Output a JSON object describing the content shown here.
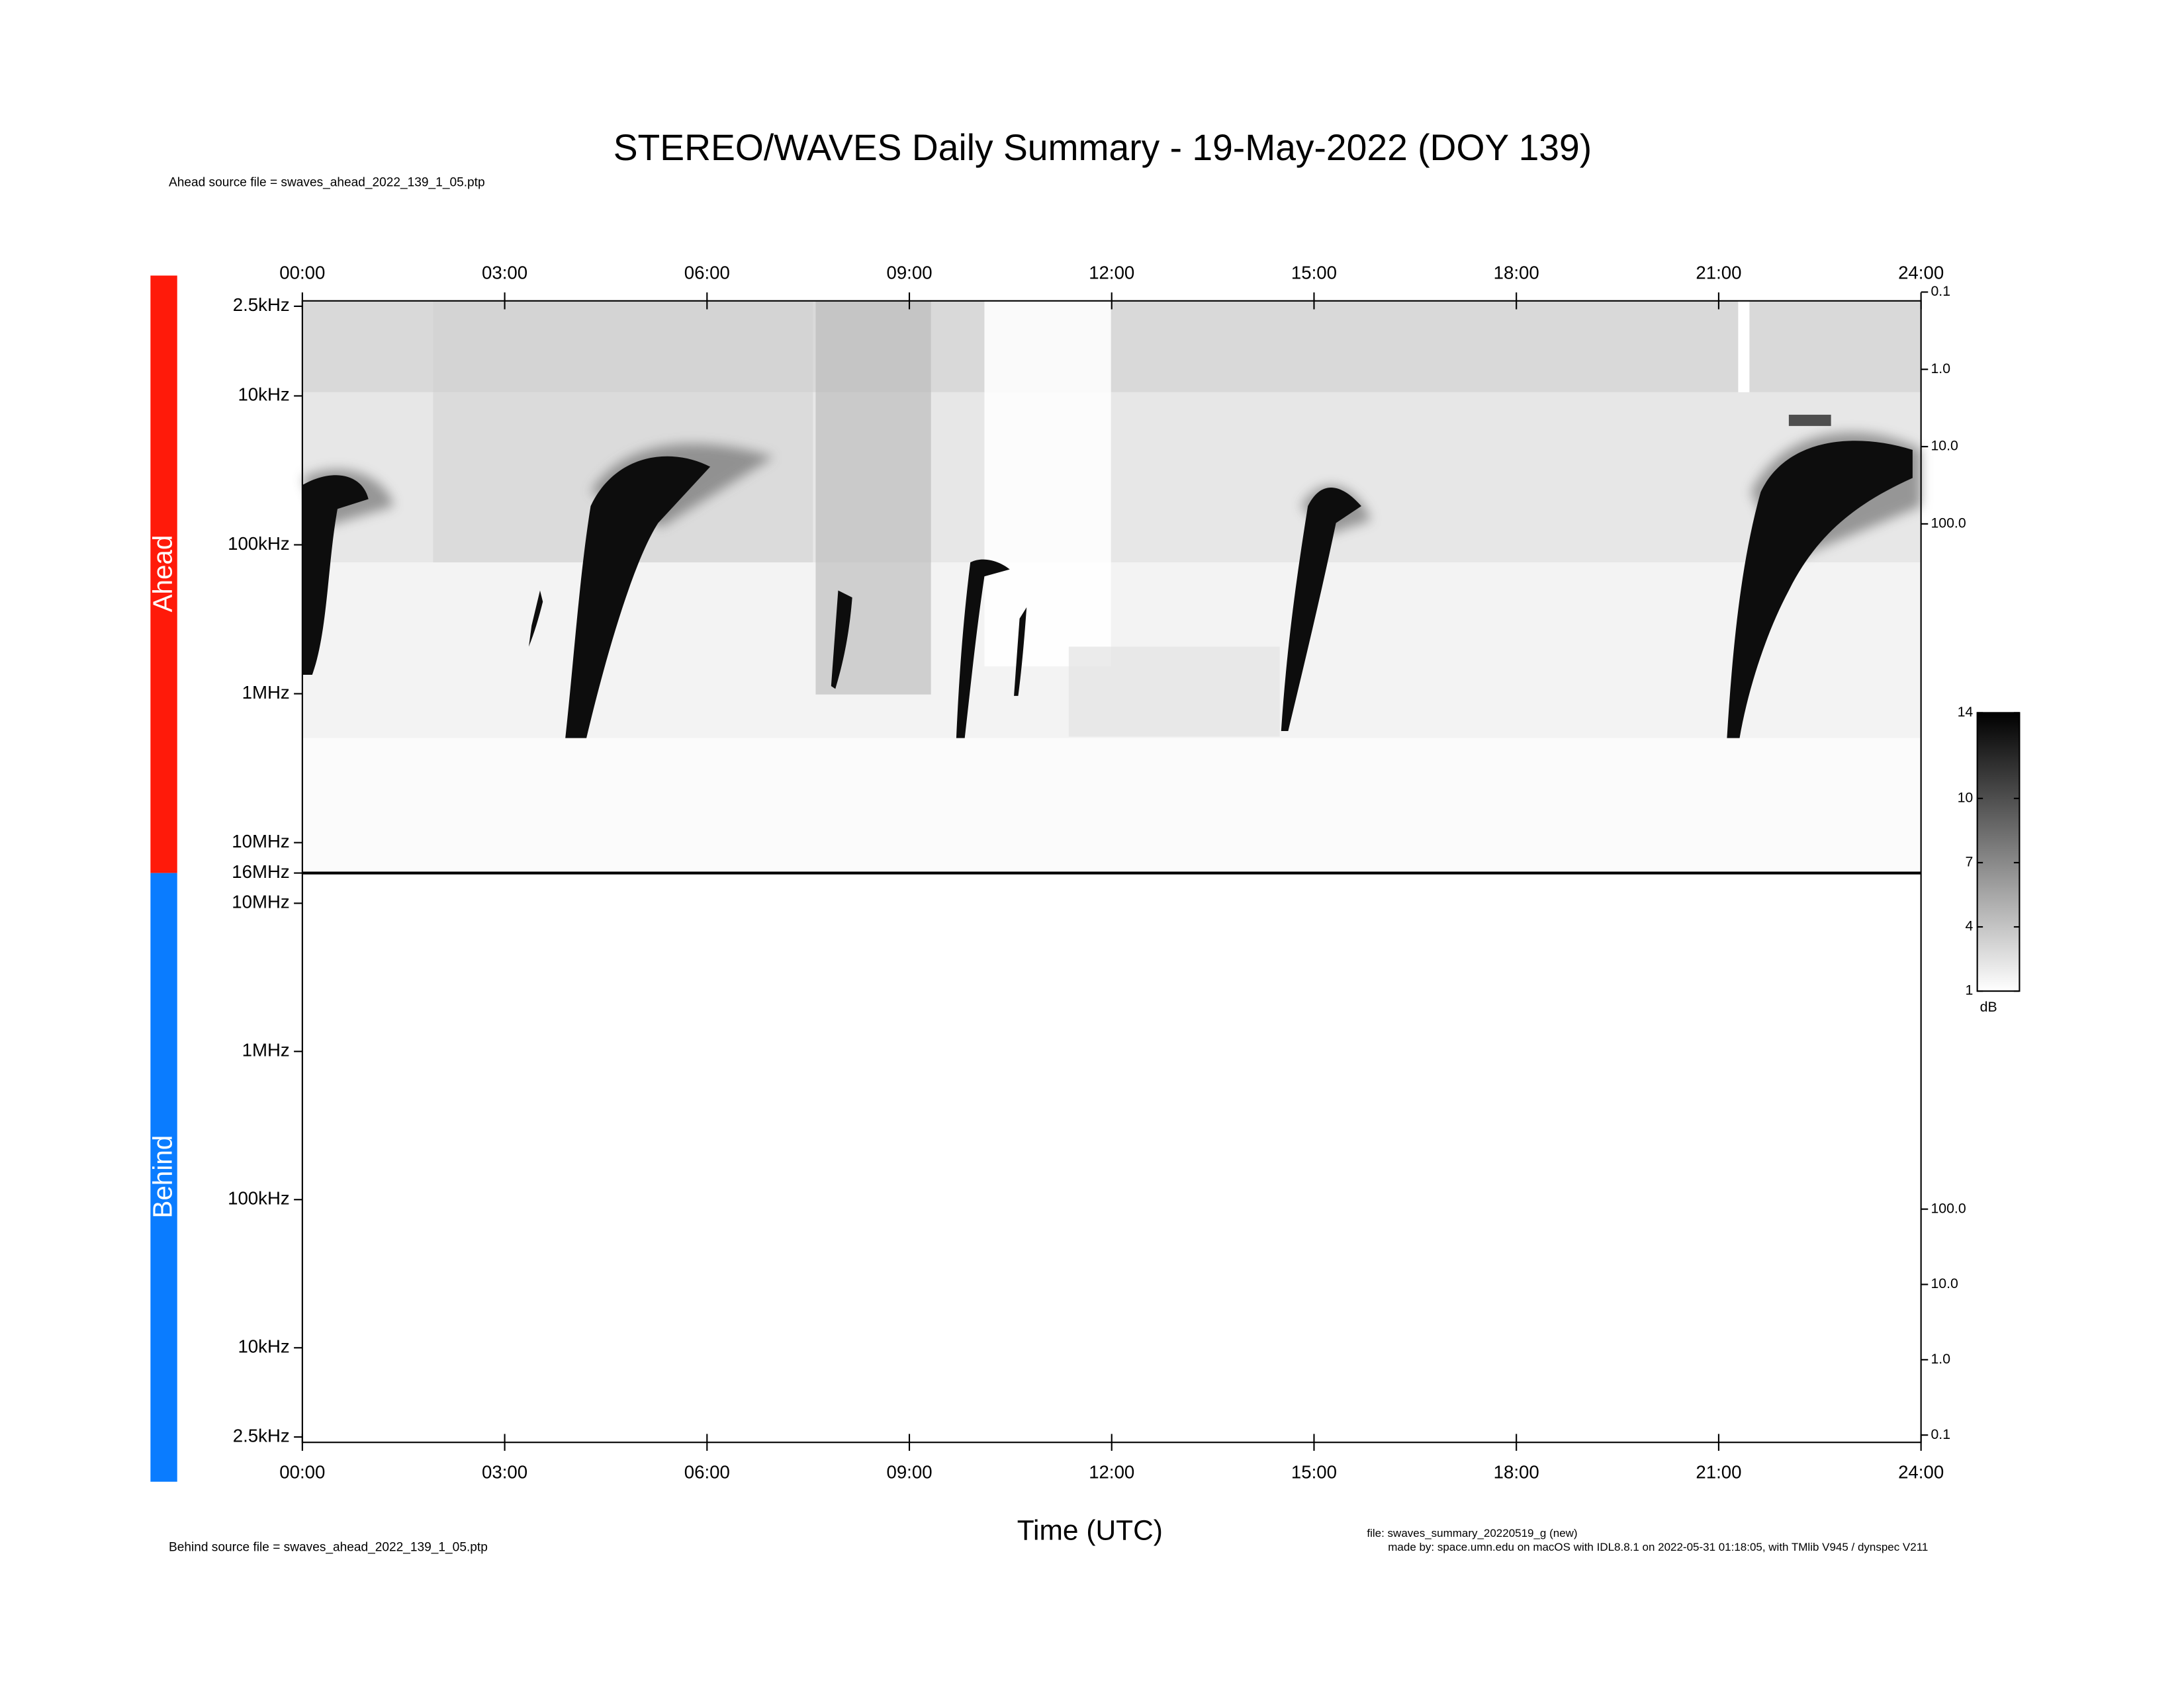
{
  "title": "STEREO/WAVES Daily Summary - 19-May-2022 (DOY 139)",
  "footer": [
    "file: swaves_summary_20220519_g (new)",
    "made by: space.umn.edu on macOS with IDL8.8.1 on 2022-05-31 01:18:05, with TMlib V945 / dynspec V211"
  ],
  "chart_data": [
    {
      "type": "spectrogram",
      "label": "Ahead",
      "label_color": "#ff1a0a",
      "source": "Ahead source file = swaves_ahead_2022_139_1_05.ptp",
      "x_axis_side": "top",
      "xlim": [
        0,
        24
      ],
      "xticks": [
        {
          "value": 0,
          "label": "00:00"
        },
        {
          "value": 3,
          "label": "03:00"
        },
        {
          "value": 6,
          "label": "06:00"
        },
        {
          "value": 9,
          "label": "09:00"
        },
        {
          "value": 12,
          "label": "12:00"
        },
        {
          "value": 15,
          "label": "15:00"
        },
        {
          "value": 18,
          "label": "18:00"
        },
        {
          "value": 21,
          "label": "21:00"
        },
        {
          "value": 24,
          "label": "24:00"
        }
      ],
      "log_y": true,
      "ylim": [
        16000,
        2.3
      ],
      "yticks": [
        {
          "value": 2.5,
          "label": "2.5kHz"
        },
        {
          "value": 10,
          "label": "10kHz"
        },
        {
          "value": 100,
          "label": "100kHz"
        },
        {
          "value": 1000,
          "label": "1MHz"
        },
        {
          "value": 10000,
          "label": "10MHz"
        },
        {
          "value": 16000,
          "label": "16MHz"
        }
      ],
      "y2lim": [
        3300000,
        0.13
      ],
      "y2ticks": [
        0.1,
        {
          "value": 1,
          "label": "1.0"
        },
        {
          "value": 10,
          "label": "10.0"
        },
        {
          "value": 100,
          "label": "100.0"
        }
      ]
    },
    {
      "type": "spectrogram",
      "label": "Behind",
      "label_color": "#0a7cff",
      "source": "Behind source file = swaves_ahead_2022_139_1_05.ptp",
      "x_axis_side": "bottom",
      "xlabel": "Time (UTC)",
      "xlim": [
        0,
        24
      ],
      "xticks": [
        {
          "value": 0,
          "label": "00:00"
        },
        {
          "value": 3,
          "label": "03:00"
        },
        {
          "value": 6,
          "label": "06:00"
        },
        {
          "value": 9,
          "label": "09:00"
        },
        {
          "value": 12,
          "label": "12:00"
        },
        {
          "value": 15,
          "label": "15:00"
        },
        {
          "value": 18,
          "label": "18:00"
        },
        {
          "value": 21,
          "label": "21:00"
        },
        {
          "value": 24,
          "label": "24:00"
        }
      ],
      "log_y": true,
      "ylim": [
        2.3,
        16000
      ],
      "yticks": [
        {
          "value": 2.5,
          "label": "2.5kHz"
        },
        {
          "value": 10,
          "label": "10kHz"
        },
        {
          "value": 100,
          "label": "100kHz"
        },
        {
          "value": 1000,
          "label": "1MHz"
        },
        {
          "value": 10000,
          "label": "10MHz"
        }
      ],
      "y2lim": [
        0.08,
        2900000
      ],
      "y2ticks": [
        0.1,
        {
          "value": 1,
          "label": "1.0"
        },
        {
          "value": 10,
          "label": "10.0"
        },
        {
          "value": 100,
          "label": "100.0"
        }
      ]
    },
    {
      "type": "colorbar",
      "label": "dB",
      "clim": [
        1,
        14
      ],
      "colors": [
        "#ffffff",
        "#000000"
      ],
      "ticks": [
        1,
        4,
        7,
        10,
        14
      ]
    }
  ]
}
